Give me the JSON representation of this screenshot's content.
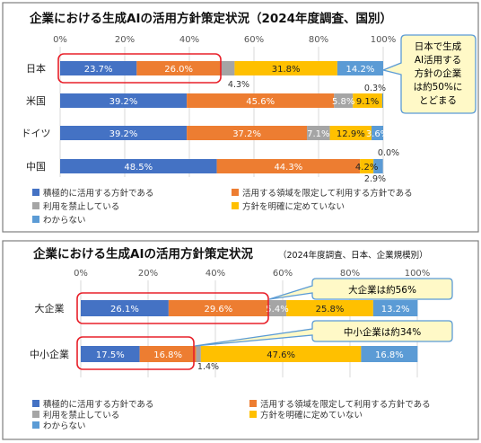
{
  "colors": {
    "proactive": "#4472C4",
    "limited": "#ED7D31",
    "prohibited": "#A5A5A5",
    "undecided": "#FFC000",
    "unknown": "#5B9BD5",
    "highlight": "#E8202A",
    "callout_fill": "#FFF9C7",
    "callout_stroke": "#5B9BD5"
  },
  "chart_data": [
    {
      "type": "bar",
      "orientation": "horizontal",
      "stacked": true,
      "title": "企業における生成AIの活用方針策定状況（2024年度調査、国別）",
      "subtitle": "",
      "xlim": [
        0,
        100
      ],
      "x_ticks": [
        "0%",
        "20%",
        "40%",
        "60%",
        "80%",
        "100%"
      ],
      "categories": [
        "日本",
        "米国",
        "ドイツ",
        "中国"
      ],
      "series": [
        {
          "name": "積極的に活用する方針である",
          "values": [
            23.7,
            39.2,
            39.2,
            48.5
          ]
        },
        {
          "name": "活用する領域を限定して利用する方針である",
          "values": [
            26.0,
            45.6,
            37.2,
            44.3
          ]
        },
        {
          "name": "利用を禁止している",
          "values": [
            4.3,
            5.8,
            7.1,
            0.0
          ]
        },
        {
          "name": "方針を明確に定めていない",
          "values": [
            31.8,
            9.1,
            12.9,
            4.2
          ]
        },
        {
          "name": "わからない",
          "values": [
            14.2,
            0.3,
            3.6,
            2.9
          ]
        }
      ],
      "labels": [
        [
          "23.7%",
          "26.0%",
          "4.3%",
          "31.8%",
          "14.2%"
        ],
        [
          "39.2%",
          "45.6%",
          "5.8%",
          "9.1%",
          "0.3%"
        ],
        [
          "39.2%",
          "37.2%",
          "7.1%",
          "12.9%",
          "3.6%"
        ],
        [
          "48.5%",
          "44.3%",
          "0.0%",
          "4.2%",
          "2.9%"
        ]
      ],
      "callout": "日本で生成\nAI活用する\n方針の企業\nは約50%に\nとどまる",
      "legend_position": "bottom"
    },
    {
      "type": "bar",
      "orientation": "horizontal",
      "stacked": true,
      "title": "企業における生成AIの活用方針策定状況",
      "subtitle": "（2024年度調査、日本、企業規模別）",
      "xlim": [
        0,
        100
      ],
      "x_ticks": [
        "0%",
        "20%",
        "40%",
        "60%",
        "80%",
        "100%"
      ],
      "categories": [
        "大企業",
        "中小企業"
      ],
      "series": [
        {
          "name": "積極的に活用する方針である",
          "values": [
            26.1,
            17.5
          ]
        },
        {
          "name": "活用する領域を限定して利用する方針である",
          "values": [
            29.6,
            16.8
          ]
        },
        {
          "name": "利用を禁止している",
          "values": [
            5.4,
            1.4
          ]
        },
        {
          "name": "方針を明確に定めていない",
          "values": [
            25.8,
            47.6
          ]
        },
        {
          "name": "わからない",
          "values": [
            13.2,
            16.8
          ]
        }
      ],
      "labels": [
        [
          "26.1%",
          "29.6%",
          "5.4%",
          "25.8%",
          "13.2%"
        ],
        [
          "17.5%",
          "16.8%",
          "1.4%",
          "47.6%",
          "16.8%"
        ]
      ],
      "callouts": [
        "大企業は約56%",
        "中小企業は約34%"
      ],
      "legend_position": "bottom"
    }
  ]
}
